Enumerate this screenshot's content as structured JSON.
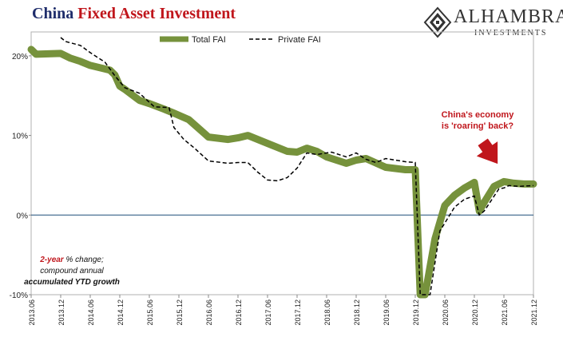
{
  "title": {
    "part1": "China",
    "part2": "Fixed Asset Investment"
  },
  "logo": {
    "name": "ALHAMBRA",
    "sub": "INVESTMENTS"
  },
  "annotation": {
    "line1": "China's economy",
    "line2": "is 'roaring' back?"
  },
  "note": {
    "red": "2-year",
    "rest1": " % change;",
    "line2": "compound annual",
    "line3": "accumulated YTD growth"
  },
  "colors": {
    "total": "#76923c",
    "private": "#000000",
    "zero_line": "#1f4e79",
    "arrow": "#c0161c",
    "title_blue": "#1f2d6b",
    "title_red": "#c0161c"
  },
  "chart_data": {
    "type": "line",
    "ylim": [
      -10,
      23
    ],
    "xlim": [
      2013.4167,
      2021.9167
    ],
    "yticks": [
      20,
      10,
      0,
      -10
    ],
    "ytick_labels": [
      "20%",
      "10%",
      "0%",
      "-10%"
    ],
    "xticks": [
      2013.4167,
      2013.9167,
      2014.4167,
      2014.9167,
      2015.4167,
      2015.9167,
      2016.4167,
      2016.9167,
      2017.4167,
      2017.9167,
      2018.4167,
      2018.9167,
      2019.4167,
      2019.9167,
      2020.4167,
      2020.9167,
      2021.4167,
      2021.9167
    ],
    "xtick_labels": [
      "2013.06",
      "2013.12",
      "2014.06",
      "2014.12",
      "2015.06",
      "2015.12",
      "2016.06",
      "2016.12",
      "2017.06",
      "2017.12",
      "2018.06",
      "2018.12",
      "2019.06",
      "2019.12",
      "2020.06",
      "2020.12",
      "2021.06",
      "2021.12"
    ],
    "legend": {
      "position": "top-center"
    },
    "series": [
      {
        "name": "Total FAI",
        "points": [
          [
            2013.4167,
            20.8
          ],
          [
            2013.5,
            20.2
          ],
          [
            2013.9167,
            20.3
          ],
          [
            2014.0833,
            19.7
          ],
          [
            2014.25,
            19.3
          ],
          [
            2014.4167,
            18.8
          ],
          [
            2014.75,
            18.2
          ],
          [
            2014.8333,
            17.6
          ],
          [
            2014.9167,
            16.2
          ],
          [
            2015.0,
            15.8
          ],
          [
            2015.25,
            14.4
          ],
          [
            2015.4167,
            14.0
          ],
          [
            2015.6667,
            13.3
          ],
          [
            2015.8333,
            12.8
          ],
          [
            2016.0833,
            12.0
          ],
          [
            2016.4167,
            9.8
          ],
          [
            2016.75,
            9.5
          ],
          [
            2016.9167,
            9.7
          ],
          [
            2017.0833,
            10.0
          ],
          [
            2017.4167,
            9.0
          ],
          [
            2017.75,
            8.0
          ],
          [
            2017.9167,
            7.9
          ],
          [
            2018.0833,
            8.4
          ],
          [
            2018.25,
            8.0
          ],
          [
            2018.4167,
            7.3
          ],
          [
            2018.75,
            6.5
          ],
          [
            2018.9167,
            6.9
          ],
          [
            2019.0833,
            7.1
          ],
          [
            2019.4167,
            6.0
          ],
          [
            2019.75,
            5.7
          ],
          [
            2019.9167,
            5.7
          ],
          [
            2020.0,
            -10
          ],
          [
            2020.0833,
            -10
          ],
          [
            2020.25,
            -3.0
          ],
          [
            2020.4167,
            1.2
          ],
          [
            2020.5833,
            2.5
          ],
          [
            2020.75,
            3.4
          ],
          [
            2020.9167,
            4.1
          ],
          [
            2021.0,
            0.5
          ],
          [
            2021.0833,
            1.6
          ],
          [
            2021.25,
            3.6
          ],
          [
            2021.4167,
            4.2
          ],
          [
            2021.5833,
            4.0
          ],
          [
            2021.75,
            3.9
          ],
          [
            2021.9167,
            3.9
          ]
        ]
      },
      {
        "name": "Private FAI",
        "points": [
          [
            2013.9167,
            22.3
          ],
          [
            2014.0,
            21.8
          ],
          [
            2014.25,
            21.3
          ],
          [
            2014.4167,
            20.4
          ],
          [
            2014.6667,
            19.2
          ],
          [
            2014.8333,
            17.5
          ],
          [
            2015.0,
            16.0
          ],
          [
            2015.25,
            15.3
          ],
          [
            2015.5,
            13.6
          ],
          [
            2015.75,
            13.5
          ],
          [
            2015.8333,
            11.0
          ],
          [
            2016.0,
            9.5
          ],
          [
            2016.1667,
            8.5
          ],
          [
            2016.4167,
            6.8
          ],
          [
            2016.75,
            6.5
          ],
          [
            2016.9167,
            6.6
          ],
          [
            2017.0833,
            6.6
          ],
          [
            2017.25,
            5.4
          ],
          [
            2017.4167,
            4.4
          ],
          [
            2017.5833,
            4.3
          ],
          [
            2017.75,
            4.7
          ],
          [
            2017.9167,
            5.9
          ],
          [
            2018.0833,
            7.8
          ],
          [
            2018.25,
            7.6
          ],
          [
            2018.5,
            7.9
          ],
          [
            2018.75,
            7.3
          ],
          [
            2018.9167,
            7.8
          ],
          [
            2019.0833,
            7.0
          ],
          [
            2019.25,
            6.6
          ],
          [
            2019.4167,
            7.1
          ],
          [
            2019.75,
            6.7
          ],
          [
            2019.9167,
            6.6
          ],
          [
            2020.0,
            -10
          ],
          [
            2020.1667,
            -10
          ],
          [
            2020.3333,
            -2.0
          ],
          [
            2020.4167,
            -1.0
          ],
          [
            2020.5833,
            1.0
          ],
          [
            2020.75,
            2.0
          ],
          [
            2020.9167,
            2.4
          ],
          [
            2021.0,
            0.0
          ],
          [
            2021.0833,
            0.5
          ],
          [
            2021.3333,
            3.3
          ],
          [
            2021.4167,
            3.4
          ],
          [
            2021.5,
            3.7
          ],
          [
            2021.6667,
            3.6
          ],
          [
            2021.9167,
            3.7
          ]
        ]
      }
    ]
  }
}
